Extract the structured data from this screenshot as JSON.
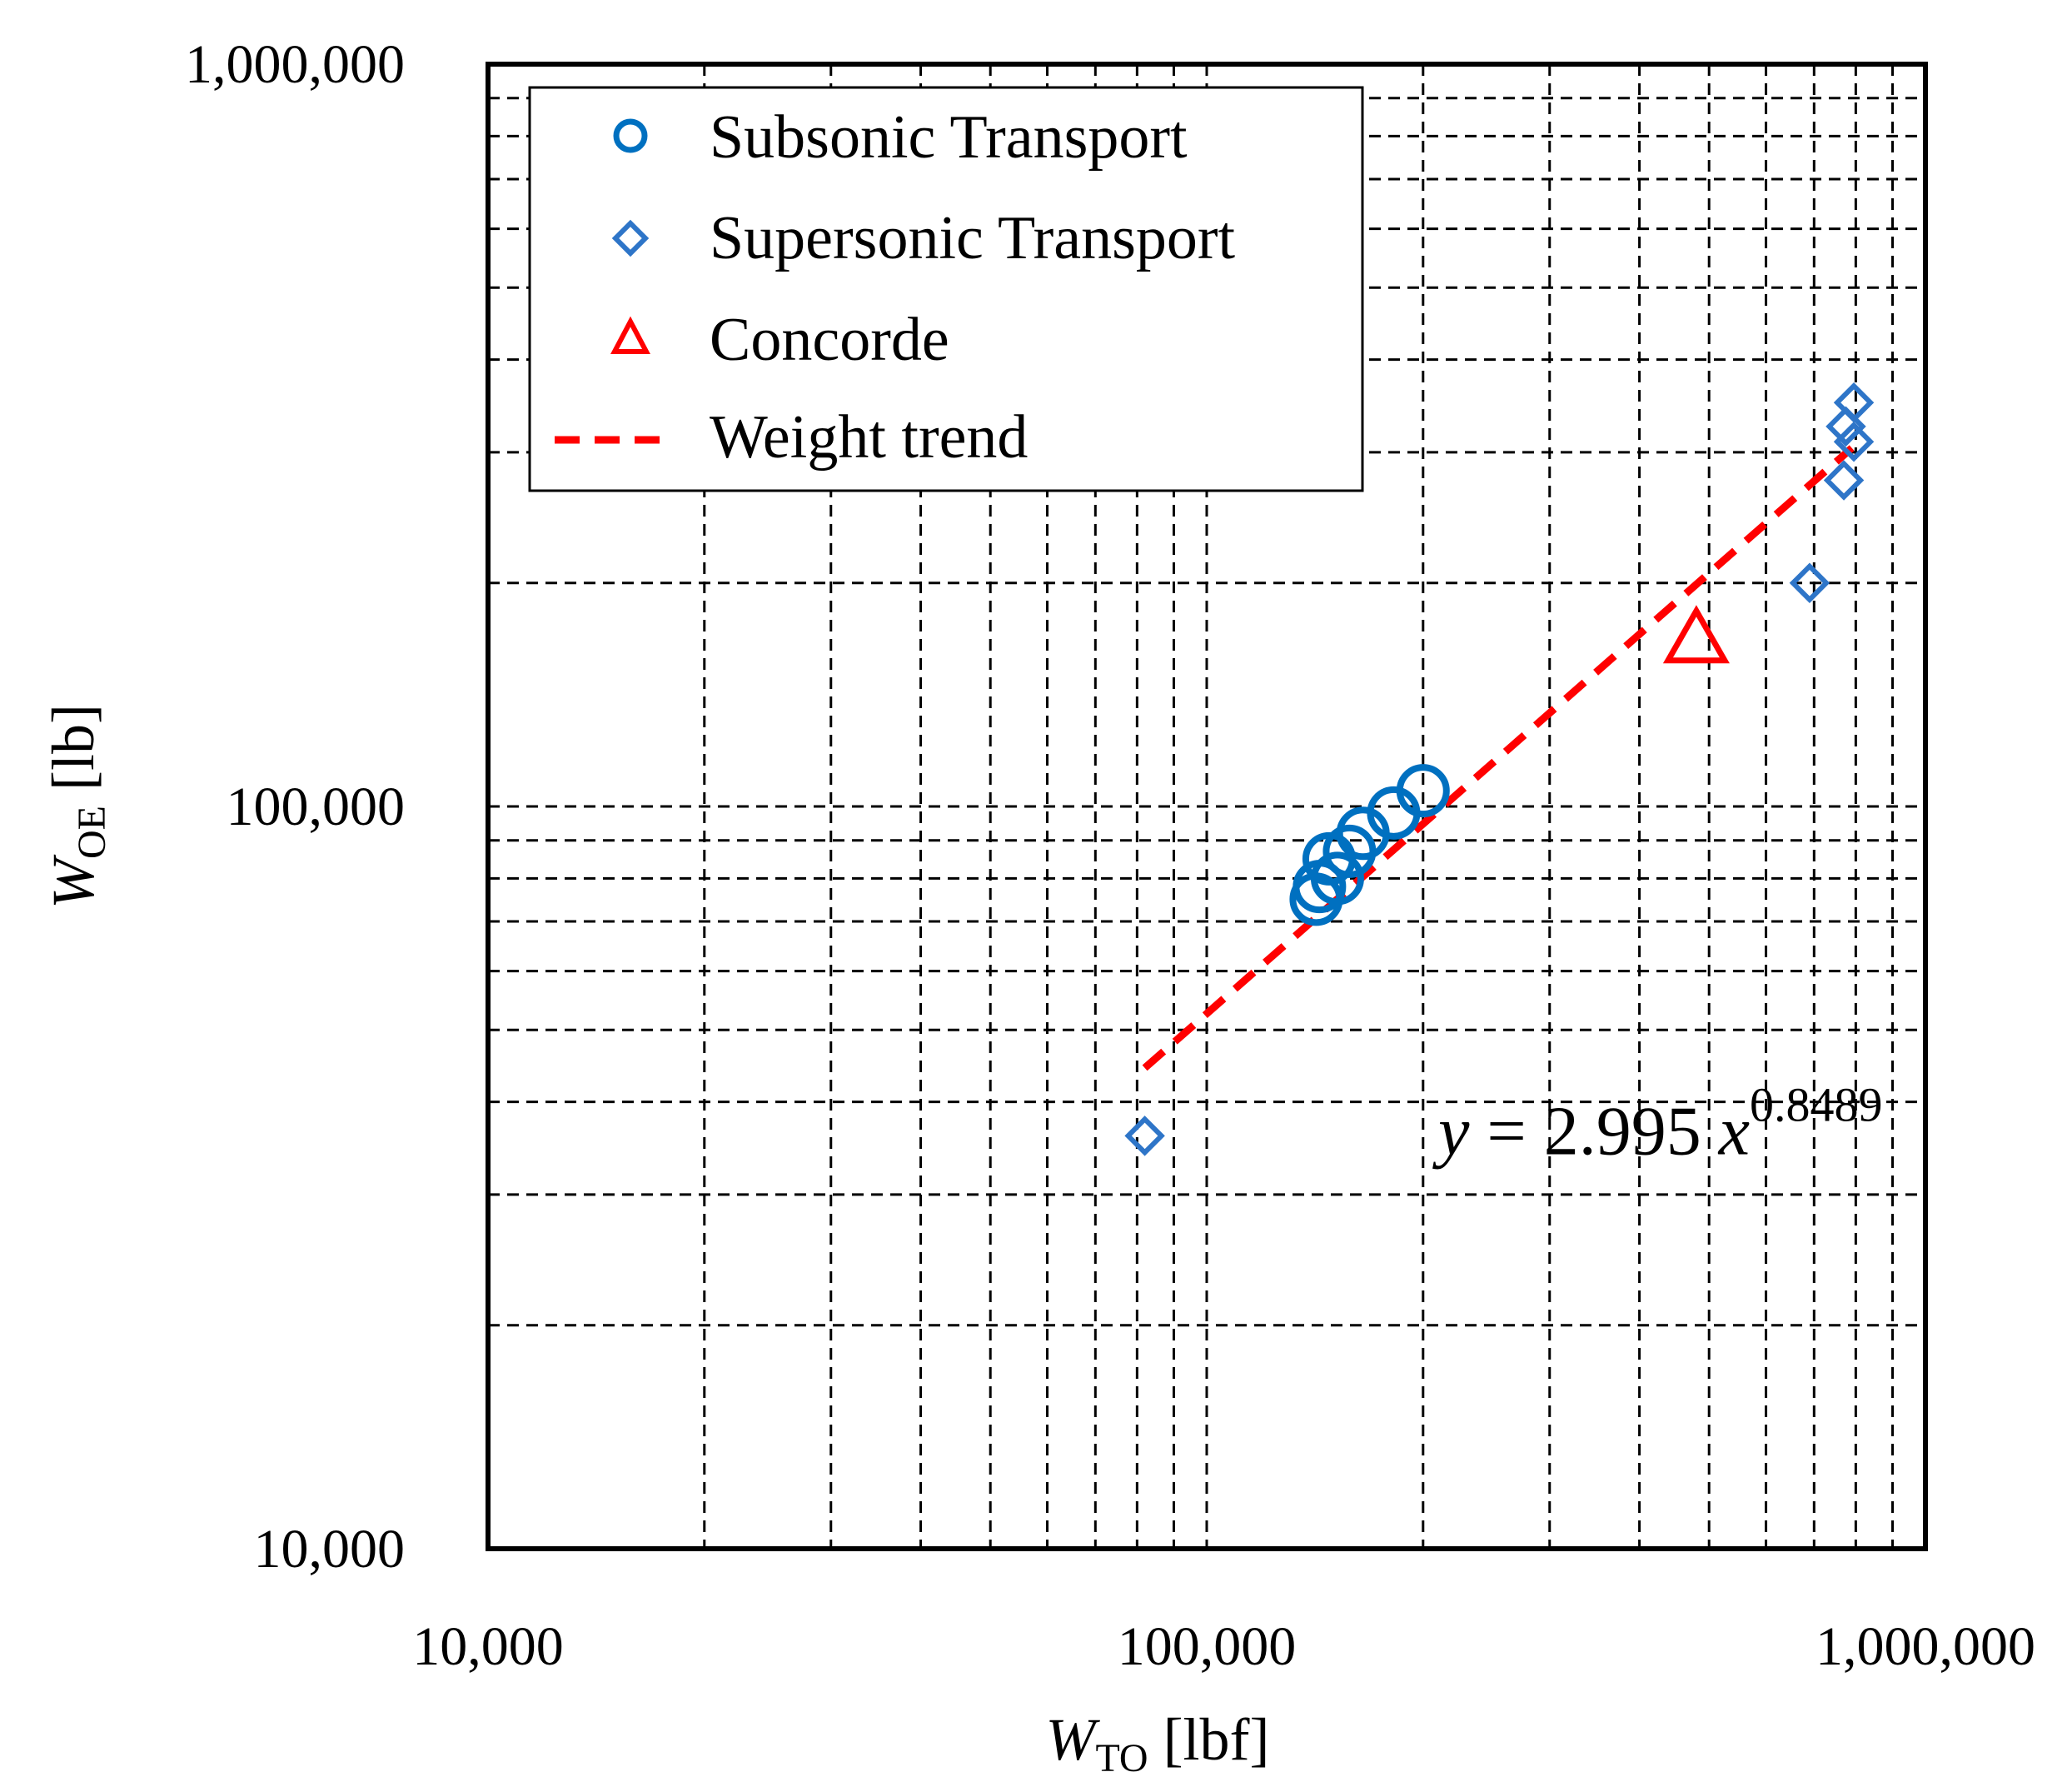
{
  "chart_data": {
    "type": "scatter",
    "x_scale": "log",
    "y_scale": "log",
    "xlim": [
      10000,
      1000000
    ],
    "ylim": [
      10000,
      1000000
    ],
    "x_ticks": [
      10000,
      100000,
      1000000
    ],
    "y_ticks": [
      10000,
      100000,
      1000000
    ],
    "x_tick_labels": [
      "10,000",
      "100,000",
      "1,000,000"
    ],
    "y_tick_labels": [
      "10,000",
      "100,000",
      "1,000,000"
    ],
    "xlabel": {
      "main": "W",
      "sub": "TO",
      "unit": " [lbf]"
    },
    "ylabel": {
      "main": "W",
      "sub": "OE",
      "unit": " [lb]"
    },
    "grid": true,
    "grid_style": "dashed",
    "legend_position": "top-left",
    "series": [
      {
        "name": "Subsonic Transport",
        "marker": "circle",
        "color": "#0070C0",
        "points": [
          {
            "x": 142000,
            "y": 75000
          },
          {
            "x": 143500,
            "y": 78000
          },
          {
            "x": 148000,
            "y": 85000
          },
          {
            "x": 152000,
            "y": 80000
          },
          {
            "x": 158000,
            "y": 87000
          },
          {
            "x": 165000,
            "y": 92000
          },
          {
            "x": 182000,
            "y": 98000
          },
          {
            "x": 200000,
            "y": 105000
          }
        ]
      },
      {
        "name": "Supersonic Transport",
        "marker": "diamond",
        "color": "#2E75C8",
        "points": [
          {
            "x": 82000,
            "y": 36000
          },
          {
            "x": 690000,
            "y": 200000
          },
          {
            "x": 770000,
            "y": 275000
          },
          {
            "x": 775000,
            "y": 325000
          },
          {
            "x": 795000,
            "y": 310000
          },
          {
            "x": 795000,
            "y": 350000
          }
        ]
      },
      {
        "name": "Concorde",
        "marker": "triangle",
        "color": "#FF0000",
        "points": [
          {
            "x": 480000,
            "y": 168000
          }
        ]
      },
      {
        "name": "Weight trend",
        "marker": "dashed-line",
        "color": "#FF0000",
        "fit": {
          "a": 2.995,
          "b": 0.8489
        },
        "x_range": [
          82000,
          790000
        ]
      }
    ],
    "annotation": {
      "prefix": "y",
      "body": " = 2.995 ",
      "var": "x",
      "exponent": "0.8489",
      "position": {
        "x": 210000,
        "y": 36000
      }
    }
  }
}
